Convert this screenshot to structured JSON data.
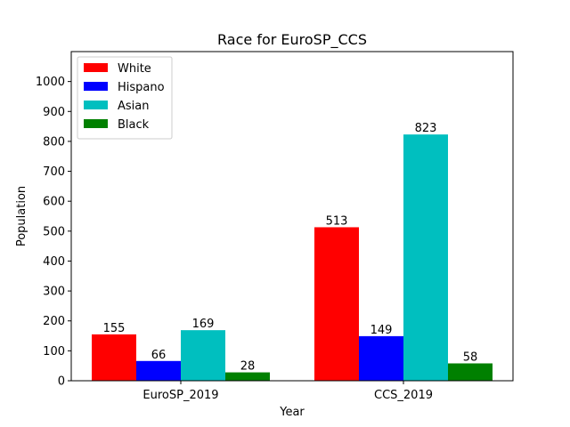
{
  "chart_data": {
    "type": "bar",
    "title": "Race for EuroSP_CCS",
    "xlabel": "Year",
    "ylabel": "Population",
    "categories": [
      "EuroSP_2019",
      "CCS_2019"
    ],
    "ylim": [
      0,
      1100
    ],
    "yticks": [
      0,
      100,
      200,
      300,
      400,
      500,
      600,
      700,
      800,
      900,
      1000
    ],
    "grid": false,
    "legend_position": "top-left",
    "series": [
      {
        "name": "White",
        "color": "#ff0000",
        "values": [
          155,
          513
        ]
      },
      {
        "name": "Hispano",
        "color": "#0000ff",
        "values": [
          66,
          149
        ]
      },
      {
        "name": "Asian",
        "color": "#00bfbf",
        "values": [
          169,
          823
        ]
      },
      {
        "name": "Black",
        "color": "#008000",
        "values": [
          28,
          58
        ]
      }
    ]
  }
}
